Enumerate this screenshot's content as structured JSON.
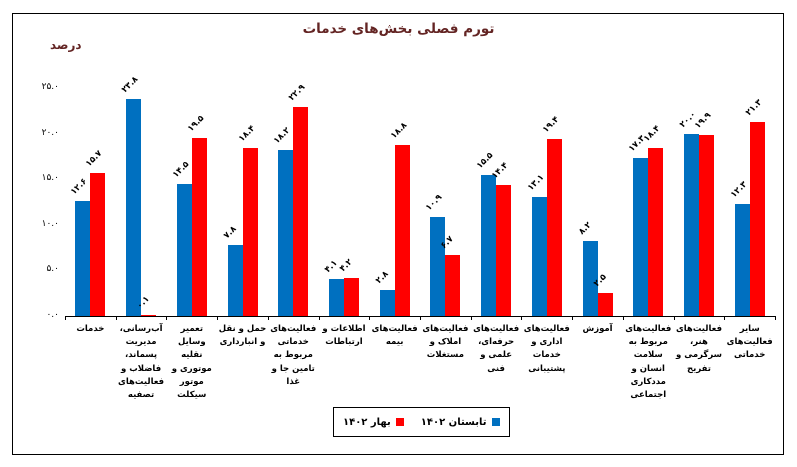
{
  "chart_data": {
    "type": "bar",
    "title": "تورم فصلی بخش‌های خدمات",
    "ylabel": "درصد",
    "xlabel": "",
    "ylim": [
      0,
      25
    ],
    "grid": false,
    "legend_position": "bottom-center",
    "yticks": [
      {
        "value": 0,
        "label": "۰.۰"
      },
      {
        "value": 5,
        "label": "۵.۰"
      },
      {
        "value": 10,
        "label": "۱۰.۰"
      },
      {
        "value": 15,
        "label": "۱۵.۰"
      },
      {
        "value": 20,
        "label": "۲۰.۰"
      },
      {
        "value": 25,
        "label": "۲۵.۰"
      }
    ],
    "categories": [
      "خدمات",
      "آب‌رسانی، مدیریت پسماند، فاضلاب و فعالیت‌های تصفیه",
      "تعمیر وسایل نقلیه موتوری و موتور سیکلت",
      "حمل و نقل و انبارداری",
      "فعالیت‌های خدماتی مربوط به تامین جا و غذا",
      "اطلاعات و ارتباطات",
      "فعالیت‌های بیمه",
      "فعالیت‌های املاک و مستغلات",
      "فعالیت‌های حرفه‌ای، علمی و فنی",
      "فعالیت‌های اداری و خدمات پشتیبانی",
      "آموزش",
      "فعالیت‌های مربوط به سلامت انسان و مددکاری اجتماعی",
      "فعالیت‌های هنر، سرگرمی و تفریح",
      "سایر فعالیت‌های خدماتی"
    ],
    "series": [
      {
        "name": "بهار ۱۴۰۲",
        "color": "#FF0000",
        "position": "right",
        "values": [
          15.7,
          0.1,
          19.5,
          18.4,
          22.9,
          4.2,
          18.8,
          6.7,
          14.4,
          19.4,
          2.5,
          18.4,
          19.9,
          21.3
        ]
      },
      {
        "name": "تابستان ۱۴۰۲",
        "color": "#0070C0",
        "position": "left",
        "values": [
          12.6,
          23.8,
          14.5,
          7.8,
          18.2,
          4.1,
          2.8,
          10.9,
          15.5,
          13.1,
          8.2,
          17.3,
          20.0,
          12.3
        ]
      }
    ],
    "legend_entries": [
      {
        "label": "بهار ۱۴۰۲",
        "color": "#FF0000"
      },
      {
        "label": "تابستان ۱۴۰۲",
        "color": "#0070C0"
      }
    ]
  }
}
